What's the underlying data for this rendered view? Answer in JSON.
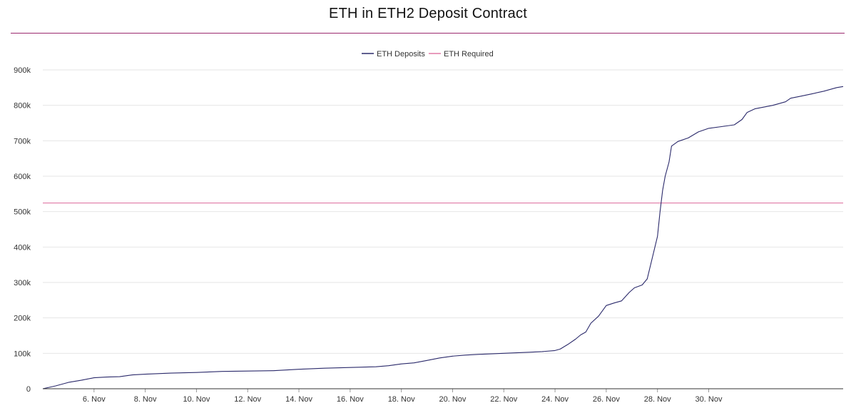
{
  "chart_data": {
    "type": "line",
    "title": "ETH in ETH2 Deposit Contract",
    "xlabel": "",
    "ylabel": "",
    "x_start": "4. Nov",
    "x_ticks": [
      "6. Nov",
      "8. Nov",
      "10. Nov",
      "12. Nov",
      "14. Nov",
      "16. Nov",
      "18. Nov",
      "20. Nov",
      "22. Nov",
      "24. Nov",
      "26. Nov",
      "28. Nov",
      "30. Nov"
    ],
    "y_ticks": [
      "0",
      "100k",
      "200k",
      "300k",
      "400k",
      "500k",
      "600k",
      "700k",
      "800k",
      "900k"
    ],
    "ylim": [
      0,
      900000
    ],
    "grid": true,
    "legend_position": "top-center",
    "series": [
      {
        "name": "ETH Deposits",
        "color": "#2b2a6b",
        "points": [
          [
            0,
            0
          ],
          [
            0.5,
            8000
          ],
          [
            1.0,
            18000
          ],
          [
            1.5,
            24000
          ],
          [
            2.0,
            31000
          ],
          [
            2.5,
            33000
          ],
          [
            3.0,
            34000
          ],
          [
            3.5,
            39000
          ],
          [
            4.0,
            41000
          ],
          [
            5.0,
            44000
          ],
          [
            6.0,
            46000
          ],
          [
            7.0,
            49000
          ],
          [
            8.0,
            50000
          ],
          [
            9.0,
            51000
          ],
          [
            10.0,
            55000
          ],
          [
            11.0,
            58000
          ],
          [
            12.0,
            60000
          ],
          [
            13.0,
            62000
          ],
          [
            13.5,
            65000
          ],
          [
            14.0,
            70000
          ],
          [
            14.5,
            73000
          ],
          [
            15.0,
            80000
          ],
          [
            15.5,
            87000
          ],
          [
            16.0,
            92000
          ],
          [
            16.5,
            95000
          ],
          [
            17.0,
            97000
          ],
          [
            18.0,
            100000
          ],
          [
            19.0,
            103000
          ],
          [
            19.5,
            105000
          ],
          [
            20.0,
            108000
          ],
          [
            20.2,
            112000
          ],
          [
            20.5,
            125000
          ],
          [
            20.8,
            140000
          ],
          [
            21.0,
            152000
          ],
          [
            21.2,
            160000
          ],
          [
            21.4,
            185000
          ],
          [
            21.7,
            205000
          ],
          [
            22.0,
            235000
          ],
          [
            22.3,
            242000
          ],
          [
            22.6,
            248000
          ],
          [
            22.9,
            272000
          ],
          [
            23.1,
            285000
          ],
          [
            23.4,
            293000
          ],
          [
            23.6,
            310000
          ],
          [
            23.8,
            370000
          ],
          [
            24.0,
            430000
          ],
          [
            24.1,
            500000
          ],
          [
            24.2,
            560000
          ],
          [
            24.3,
            600000
          ],
          [
            24.45,
            640000
          ],
          [
            24.55,
            685000
          ],
          [
            24.8,
            698000
          ],
          [
            25.2,
            708000
          ],
          [
            25.6,
            725000
          ],
          [
            26.0,
            735000
          ],
          [
            26.5,
            740000
          ],
          [
            27.0,
            745000
          ],
          [
            27.3,
            760000
          ],
          [
            27.5,
            780000
          ],
          [
            27.8,
            790000
          ],
          [
            28.5,
            800000
          ],
          [
            29.0,
            810000
          ],
          [
            29.2,
            820000
          ],
          [
            29.6,
            826000
          ],
          [
            30.0,
            832000
          ],
          [
            30.5,
            840000
          ],
          [
            31.0,
            850000
          ],
          [
            31.25,
            853000
          ]
        ]
      },
      {
        "name": "ETH Required",
        "color": "#e07aa6",
        "points": [
          [
            0,
            524288
          ],
          [
            31.25,
            524288
          ]
        ]
      }
    ]
  }
}
